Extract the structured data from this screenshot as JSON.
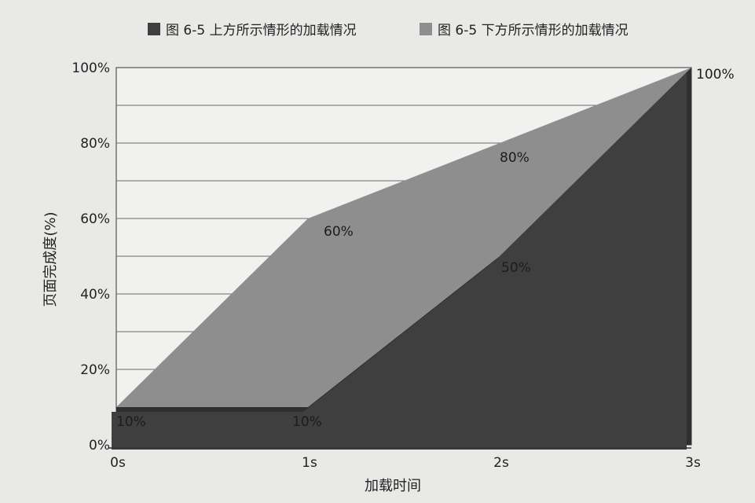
{
  "chart_data": {
    "type": "area",
    "title": "",
    "xlabel": "加载时间",
    "ylabel": "页面完成度(%)",
    "categories": [
      "0s",
      "1s",
      "2s",
      "3s"
    ],
    "yticks": [
      "0%",
      "20%",
      "40%",
      "60%",
      "80%",
      "100%"
    ],
    "ylim": [
      0,
      100
    ],
    "grid": true,
    "legend_position": "top",
    "series": [
      {
        "name": "图 6-5 上方所示情形的加载情况",
        "values": [
          10,
          10,
          50,
          100
        ],
        "labels": [
          "10%",
          "10%",
          "50%",
          "100%"
        ],
        "color": "#3f3f3f"
      },
      {
        "name": "图 6-5 下方所示情形的加载情况",
        "values": [
          10,
          60,
          80,
          100
        ],
        "labels": [
          "10%",
          "60%",
          "80%",
          "100%"
        ],
        "color": "#8e8e8e"
      }
    ]
  }
}
